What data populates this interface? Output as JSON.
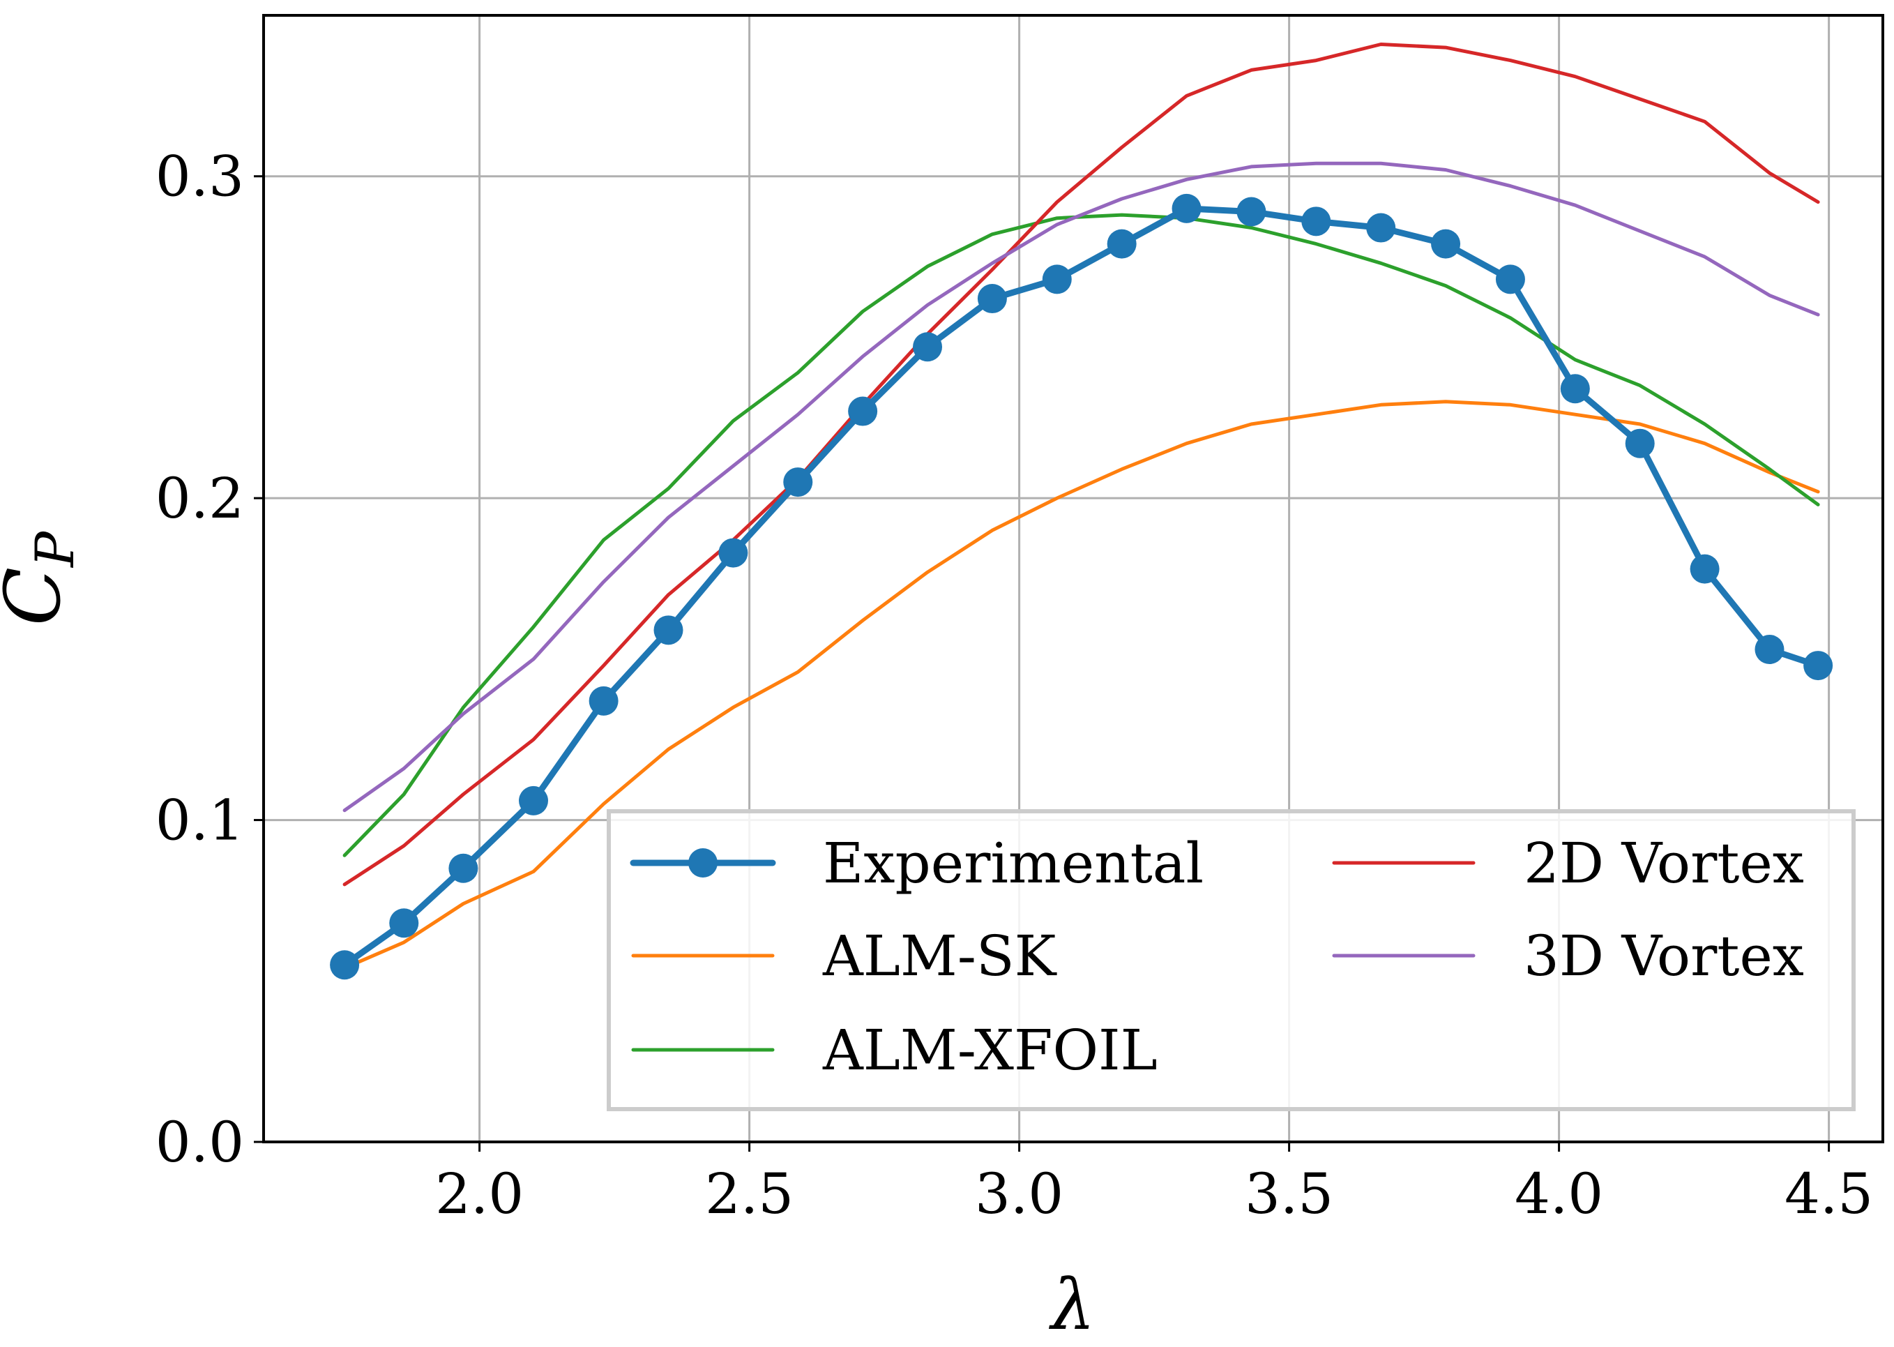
{
  "chart_data": {
    "type": "line",
    "title": "",
    "xlabel": "λ",
    "ylabel": "C",
    "ylabel_subscript": "P",
    "xlim": [
      1.6,
      4.6
    ],
    "ylim": [
      0.0,
      0.35
    ],
    "xticks": [
      2.0,
      2.5,
      3.0,
      3.5,
      4.0,
      4.5
    ],
    "xtick_labels": [
      "2.0",
      "2.5",
      "3.0",
      "3.5",
      "4.0",
      "4.5"
    ],
    "yticks": [
      0.0,
      0.1,
      0.2,
      0.3
    ],
    "ytick_labels": [
      "0.0",
      "0.1",
      "0.2",
      "0.3"
    ],
    "grid": true,
    "legend_position": "lower-right",
    "series": [
      {
        "name": "Experimental",
        "color": "#1f77b4",
        "marker": "circle",
        "x": [
          1.75,
          1.86,
          1.97,
          2.1,
          2.23,
          2.35,
          2.47,
          2.59,
          2.71,
          2.83,
          2.95,
          3.07,
          3.19,
          3.31,
          3.43,
          3.55,
          3.67,
          3.79,
          3.91,
          4.03,
          4.15,
          4.27,
          4.39,
          4.48
        ],
        "y": [
          0.055,
          0.068,
          0.085,
          0.106,
          0.137,
          0.159,
          0.183,
          0.205,
          0.227,
          0.247,
          0.262,
          0.268,
          0.279,
          0.29,
          0.289,
          0.286,
          0.284,
          0.279,
          0.268,
          0.234,
          0.217,
          0.178,
          0.153,
          0.148
        ]
      },
      {
        "name": "ALM-SK",
        "color": "#ff7f0e",
        "marker": "none",
        "x": [
          1.75,
          1.86,
          1.97,
          2.1,
          2.23,
          2.35,
          2.47,
          2.59,
          2.71,
          2.83,
          2.95,
          3.07,
          3.19,
          3.31,
          3.43,
          3.55,
          3.67,
          3.79,
          3.91,
          4.03,
          4.15,
          4.27,
          4.39,
          4.48
        ],
        "y": [
          0.054,
          0.062,
          0.074,
          0.084,
          0.105,
          0.122,
          0.135,
          0.146,
          0.162,
          0.177,
          0.19,
          0.2,
          0.209,
          0.217,
          0.223,
          0.226,
          0.229,
          0.23,
          0.229,
          0.226,
          0.223,
          0.217,
          0.208,
          0.202
        ]
      },
      {
        "name": "ALM-XFOIL",
        "color": "#2ca02c",
        "marker": "none",
        "x": [
          1.75,
          1.86,
          1.97,
          2.1,
          2.23,
          2.35,
          2.47,
          2.59,
          2.71,
          2.83,
          2.95,
          3.07,
          3.19,
          3.31,
          3.43,
          3.55,
          3.67,
          3.79,
          3.91,
          4.03,
          4.15,
          4.27,
          4.39,
          4.48
        ],
        "y": [
          0.089,
          0.108,
          0.135,
          0.16,
          0.187,
          0.203,
          0.224,
          0.239,
          0.258,
          0.272,
          0.282,
          0.287,
          0.288,
          0.287,
          0.284,
          0.279,
          0.273,
          0.266,
          0.256,
          0.243,
          0.235,
          0.223,
          0.209,
          0.198
        ]
      },
      {
        "name": "2D Vortex",
        "color": "#d62728",
        "marker": "none",
        "x": [
          1.75,
          1.86,
          1.97,
          2.1,
          2.23,
          2.35,
          2.47,
          2.59,
          2.71,
          2.83,
          2.95,
          3.07,
          3.19,
          3.31,
          3.43,
          3.55,
          3.67,
          3.79,
          3.91,
          4.03,
          4.15,
          4.27,
          4.39,
          4.48
        ],
        "y": [
          0.08,
          0.092,
          0.108,
          0.125,
          0.148,
          0.17,
          0.187,
          0.206,
          0.229,
          0.251,
          0.271,
          0.292,
          0.309,
          0.325,
          0.333,
          0.336,
          0.341,
          0.34,
          0.336,
          0.331,
          0.324,
          0.317,
          0.301,
          0.292
        ]
      },
      {
        "name": "3D Vortex",
        "color": "#9467bd",
        "marker": "none",
        "x": [
          1.75,
          1.86,
          1.97,
          2.1,
          2.23,
          2.35,
          2.47,
          2.59,
          2.71,
          2.83,
          2.95,
          3.07,
          3.19,
          3.31,
          3.43,
          3.55,
          3.67,
          3.79,
          3.91,
          4.03,
          4.15,
          4.27,
          4.39,
          4.48
        ],
        "y": [
          0.103,
          0.116,
          0.133,
          0.15,
          0.174,
          0.194,
          0.21,
          0.226,
          0.244,
          0.26,
          0.273,
          0.285,
          0.293,
          0.299,
          0.303,
          0.304,
          0.304,
          0.302,
          0.297,
          0.291,
          0.283,
          0.275,
          0.263,
          0.257
        ]
      }
    ]
  }
}
